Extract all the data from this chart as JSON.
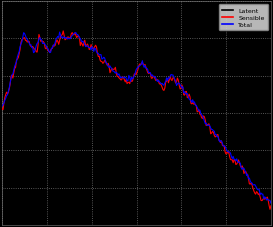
{
  "background_color": "#000000",
  "plot_bg_color": "#000000",
  "legend_labels": [
    "Latent",
    "Sensible",
    "Total"
  ],
  "legend_colors": [
    "#000000",
    "#ff0000",
    "#0000ff"
  ],
  "line_colors": [
    "#000000",
    "#ff0000",
    "#0000ff"
  ],
  "figsize": [
    2.73,
    2.28
  ],
  "dpi": 100,
  "ylim": [
    0,
    1.0
  ],
  "xlim": [
    0,
    1.0
  ]
}
